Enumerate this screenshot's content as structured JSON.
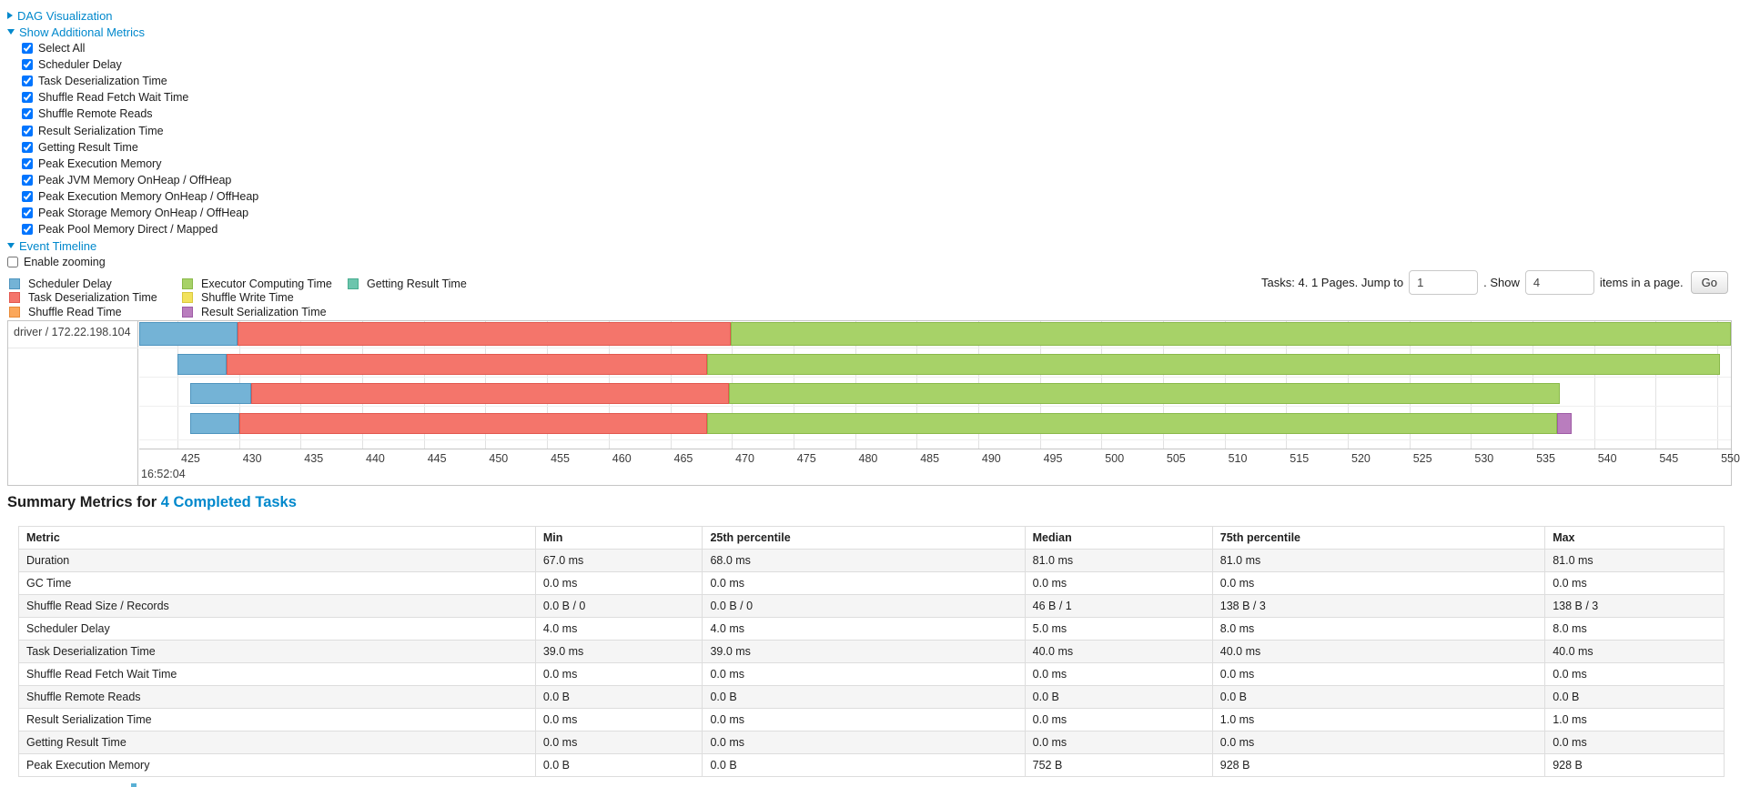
{
  "controls": {
    "dag": {
      "label": "DAG Visualization",
      "state": "collapsed"
    },
    "metrics_toggle": {
      "label": "Show Additional Metrics",
      "state": "expanded"
    },
    "checkboxes": [
      {
        "label": "Select All",
        "checked": true
      },
      {
        "label": "Scheduler Delay",
        "checked": true
      },
      {
        "label": "Task Deserialization Time",
        "checked": true
      },
      {
        "label": "Shuffle Read Fetch Wait Time",
        "checked": true
      },
      {
        "label": "Shuffle Remote Reads",
        "checked": true
      },
      {
        "label": "Result Serialization Time",
        "checked": true
      },
      {
        "label": "Getting Result Time",
        "checked": true
      },
      {
        "label": "Peak Execution Memory",
        "checked": true
      },
      {
        "label": "Peak JVM Memory OnHeap / OffHeap",
        "checked": true
      },
      {
        "label": "Peak Execution Memory OnHeap / OffHeap",
        "checked": true
      },
      {
        "label": "Peak Storage Memory OnHeap / OffHeap",
        "checked": true
      },
      {
        "label": "Peak Pool Memory Direct / Mapped",
        "checked": true
      }
    ],
    "event_timeline": {
      "label": "Event Timeline",
      "state": "expanded"
    },
    "enable_zooming": {
      "label": "Enable zooming",
      "checked": false
    }
  },
  "pagination": {
    "prefix": "Tasks: 4. 1 Pages. Jump to",
    "jump_value": "1",
    "mid": ". Show",
    "show_value": "4",
    "suffix": "items in a page.",
    "go_label": "Go"
  },
  "chart_data": {
    "type": "timeline",
    "group_label": "driver / 172.22.198.104",
    "axis": {
      "unit": "ms within second",
      "seconds_label": "16:52:04",
      "tick_start": 425,
      "tick_end": 550,
      "tick_step": 5,
      "domain": [
        421.9,
        551.1
      ]
    },
    "series_labels": {
      "scheduler_delay": "Scheduler Delay",
      "task_deserialization": "Task Deserialization Time",
      "shuffle_read": "Shuffle Read Time",
      "executor_computing": "Executor Computing Time",
      "shuffle_write": "Shuffle Write Time",
      "result_serialization": "Result Serialization Time",
      "getting_result": "Getting Result Time"
    },
    "colors": {
      "scheduler_delay": {
        "fill": "#74B3D6",
        "border": "#4E94BE"
      },
      "task_deserialization": {
        "fill": "#F4756B",
        "border": "#E2574E"
      },
      "shuffle_read": {
        "fill": "#FBA75B",
        "border": "#E88A37"
      },
      "executor_computing": {
        "fill": "#A7D268",
        "border": "#8AB94A"
      },
      "shuffle_write": {
        "fill": "#F2E25D",
        "border": "#D9C83E"
      },
      "result_serialization": {
        "fill": "#B97DBE",
        "border": "#9E5BA5"
      },
      "getting_result": {
        "fill": "#6CC5AD",
        "border": "#48AD90"
      }
    },
    "legend_columns": [
      [
        "scheduler_delay",
        "task_deserialization",
        "shuffle_read"
      ],
      [
        "executor_computing",
        "shuffle_write",
        "result_serialization"
      ],
      [
        "getting_result"
      ]
    ],
    "tasks": [
      {
        "row": 0,
        "segments": [
          {
            "type": "scheduler_delay",
            "start": 421.9,
            "end": 429.9
          },
          {
            "type": "task_deserialization",
            "start": 429.9,
            "end": 469.9
          },
          {
            "type": "executor_computing",
            "start": 469.9,
            "end": 551.1
          }
        ]
      },
      {
        "row": 1,
        "segments": [
          {
            "type": "scheduler_delay",
            "start": 425.0,
            "end": 429.0
          },
          {
            "type": "task_deserialization",
            "start": 429.0,
            "end": 468.0
          },
          {
            "type": "executor_computing",
            "start": 468.0,
            "end": 550.2
          }
        ]
      },
      {
        "row": 2,
        "segments": [
          {
            "type": "scheduler_delay",
            "start": 426.0,
            "end": 431.0
          },
          {
            "type": "task_deserialization",
            "start": 431.0,
            "end": 469.8
          },
          {
            "type": "executor_computing",
            "start": 469.8,
            "end": 537.2
          }
        ]
      },
      {
        "row": 3,
        "segments": [
          {
            "type": "scheduler_delay",
            "start": 426.0,
            "end": 430.0
          },
          {
            "type": "task_deserialization",
            "start": 430.0,
            "end": 468.0
          },
          {
            "type": "executor_computing",
            "start": 468.0,
            "end": 537.0
          },
          {
            "type": "result_serialization",
            "start": 537.0,
            "end": 538.2
          }
        ]
      }
    ]
  },
  "summary": {
    "title_prefix": "Summary Metrics for",
    "title_link": "4 Completed Tasks",
    "table": {
      "headers": [
        "Metric",
        "Min",
        "25th percentile",
        "Median",
        "75th percentile",
        "Max"
      ],
      "col_widths_pct": [
        30.3,
        9.8,
        18.9,
        11.0,
        19.5,
        10.5
      ],
      "rows": [
        [
          "Duration",
          "67.0 ms",
          "68.0 ms",
          "81.0 ms",
          "81.0 ms",
          "81.0 ms"
        ],
        [
          "GC Time",
          "0.0 ms",
          "0.0 ms",
          "0.0 ms",
          "0.0 ms",
          "0.0 ms"
        ],
        [
          "Shuffle Read Size / Records",
          "0.0 B / 0",
          "0.0 B / 0",
          "46 B / 1",
          "138 B / 3",
          "138 B / 3"
        ],
        [
          "Scheduler Delay",
          "4.0 ms",
          "4.0 ms",
          "5.0 ms",
          "8.0 ms",
          "8.0 ms"
        ],
        [
          "Task Deserialization Time",
          "39.0 ms",
          "39.0 ms",
          "40.0 ms",
          "40.0 ms",
          "40.0 ms"
        ],
        [
          "Shuffle Read Fetch Wait Time",
          "0.0 ms",
          "0.0 ms",
          "0.0 ms",
          "0.0 ms",
          "0.0 ms"
        ],
        [
          "Shuffle Remote Reads",
          "0.0 B",
          "0.0 B",
          "0.0 B",
          "0.0 B",
          "0.0 B"
        ],
        [
          "Result Serialization Time",
          "0.0 ms",
          "0.0 ms",
          "0.0 ms",
          "1.0 ms",
          "1.0 ms"
        ],
        [
          "Getting Result Time",
          "0.0 ms",
          "0.0 ms",
          "0.0 ms",
          "0.0 ms",
          "0.0 ms"
        ],
        [
          "Peak Execution Memory",
          "0.0 B",
          "0.0 B",
          "752 B",
          "928 B",
          "928 B"
        ]
      ]
    }
  }
}
